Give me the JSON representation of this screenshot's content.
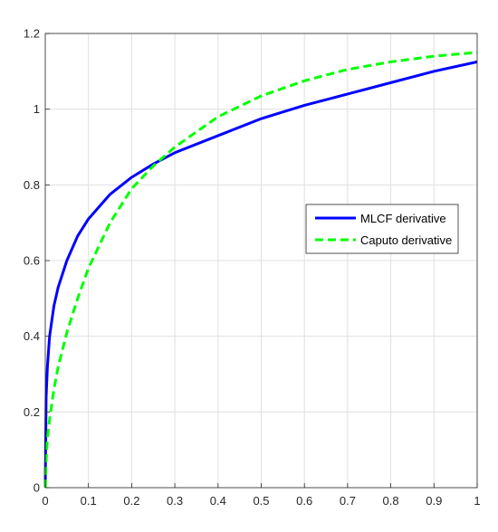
{
  "chart_data": {
    "type": "line",
    "title": "",
    "xlabel": "",
    "ylabel": "",
    "xlim": [
      0,
      1
    ],
    "ylim": [
      0,
      1.2
    ],
    "grid": true,
    "legend_position": "center-right",
    "x_ticks": [
      "0",
      "0.1",
      "0.2",
      "0.3",
      "0.4",
      "0.5",
      "0.6",
      "0.7",
      "0.8",
      "0.9",
      "1"
    ],
    "y_ticks": [
      "0",
      "0.2",
      "0.4",
      "0.6",
      "0.8",
      "1",
      "1.2"
    ],
    "series": [
      {
        "name": "MLCF derivative",
        "color": "#0000ff",
        "style": "solid",
        "x": [
          0,
          0.002,
          0.005,
          0.01,
          0.02,
          0.03,
          0.05,
          0.075,
          0.1,
          0.15,
          0.2,
          0.25,
          0.3,
          0.4,
          0.5,
          0.6,
          0.7,
          0.8,
          0.9,
          1.0
        ],
        "y": [
          0,
          0.24,
          0.32,
          0.4,
          0.48,
          0.53,
          0.6,
          0.665,
          0.71,
          0.775,
          0.82,
          0.855,
          0.885,
          0.93,
          0.975,
          1.01,
          1.04,
          1.07,
          1.1,
          1.125
        ]
      },
      {
        "name": "Caputo derivative",
        "color": "#00ff00",
        "style": "dashed",
        "x": [
          0,
          0.002,
          0.005,
          0.01,
          0.02,
          0.03,
          0.05,
          0.075,
          0.1,
          0.15,
          0.2,
          0.25,
          0.3,
          0.4,
          0.5,
          0.6,
          0.7,
          0.8,
          0.9,
          1.0
        ],
        "y": [
          0,
          0.07,
          0.13,
          0.18,
          0.26,
          0.32,
          0.41,
          0.5,
          0.58,
          0.7,
          0.79,
          0.85,
          0.9,
          0.98,
          1.035,
          1.075,
          1.105,
          1.125,
          1.14,
          1.15
        ]
      }
    ]
  }
}
